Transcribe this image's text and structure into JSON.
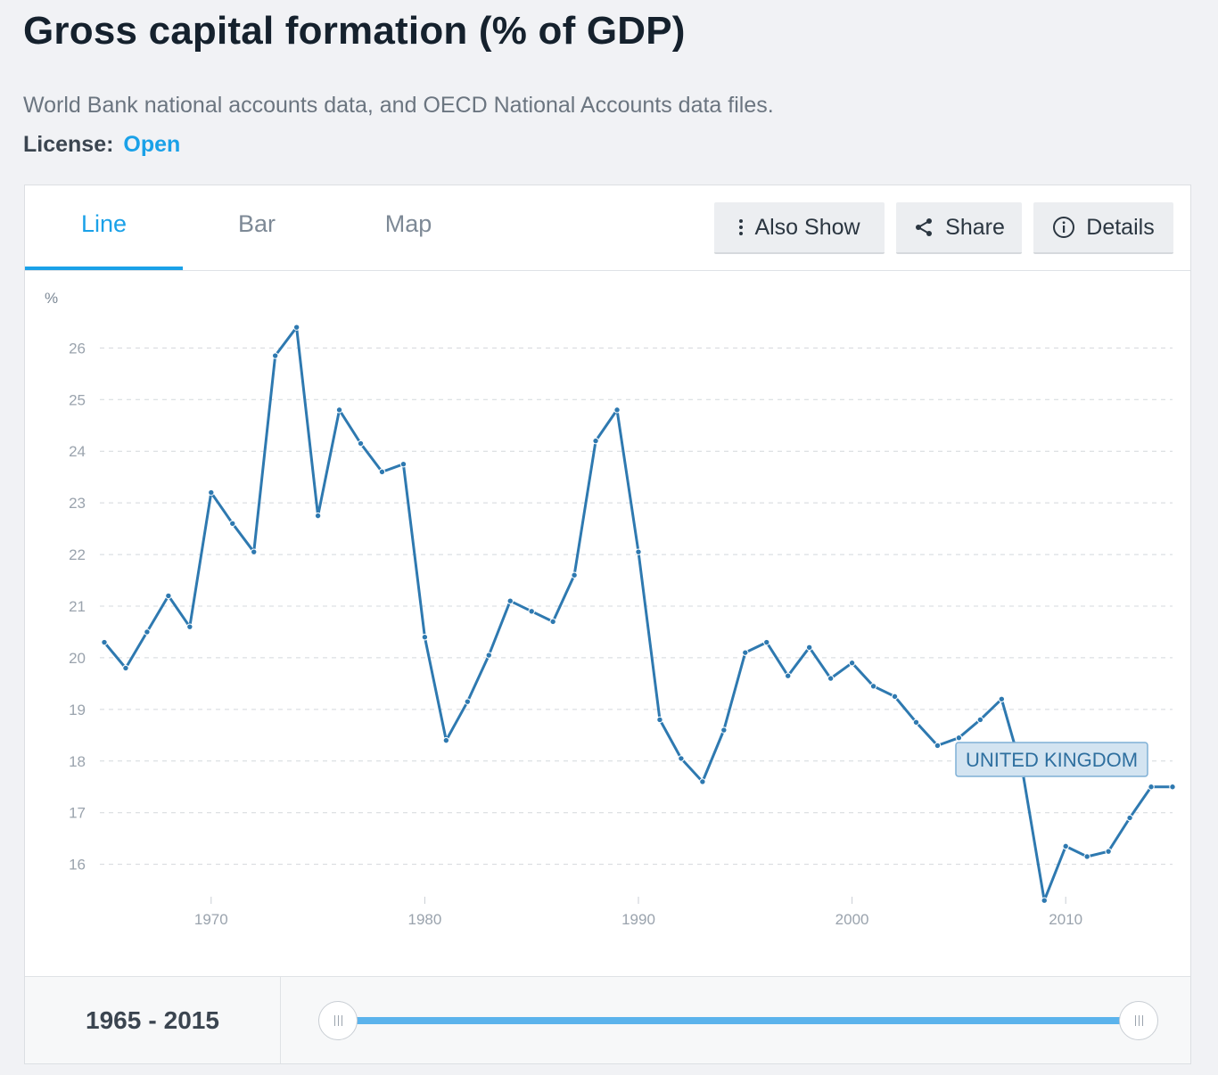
{
  "header": {
    "title": "Gross capital formation (% of GDP)",
    "source": "World Bank national accounts data, and OECD National Accounts data files.",
    "license_label": "License:",
    "license_value": "Open"
  },
  "tabs": [
    {
      "label": "Line",
      "active": true
    },
    {
      "label": "Bar",
      "active": false
    },
    {
      "label": "Map",
      "active": false
    }
  ],
  "toolbar": {
    "also_show": "Also Show",
    "share": "Share",
    "details": "Details"
  },
  "range": {
    "start": "1965",
    "separator": "-",
    "end": "2015"
  },
  "colors": {
    "accent": "#1aa1e8",
    "series": "#2e79b0",
    "slider": "#5bb3ec"
  },
  "chart_data": {
    "type": "line",
    "ylabel": "%",
    "x": [
      1965,
      1966,
      1967,
      1968,
      1969,
      1970,
      1971,
      1972,
      1973,
      1974,
      1975,
      1976,
      1977,
      1978,
      1979,
      1980,
      1981,
      1982,
      1983,
      1984,
      1985,
      1986,
      1987,
      1988,
      1989,
      1990,
      1991,
      1992,
      1993,
      1994,
      1995,
      1996,
      1997,
      1998,
      1999,
      2000,
      2001,
      2002,
      2003,
      2004,
      2005,
      2006,
      2007,
      2008,
      2009,
      2010,
      2011,
      2012,
      2013,
      2014,
      2015
    ],
    "series": [
      {
        "name": "UNITED KINGDOM",
        "values": [
          20.3,
          19.8,
          20.5,
          21.2,
          20.6,
          23.2,
          22.6,
          22.05,
          25.85,
          26.4,
          22.75,
          24.8,
          24.15,
          23.6,
          23.75,
          20.4,
          18.4,
          19.15,
          20.05,
          21.1,
          20.9,
          20.7,
          21.6,
          24.2,
          24.8,
          22.05,
          18.8,
          18.05,
          17.6,
          18.6,
          20.1,
          20.3,
          19.65,
          20.2,
          19.6,
          19.9,
          19.45,
          19.25,
          18.75,
          18.3,
          18.45,
          18.8,
          19.2,
          17.75,
          15.3,
          16.35,
          16.15,
          16.25,
          16.9,
          17.5,
          17.5
        ]
      }
    ],
    "xticks": [
      1970,
      1980,
      1990,
      2000,
      2010
    ],
    "yticks": [
      16,
      17,
      18,
      19,
      20,
      21,
      22,
      23,
      24,
      25,
      26
    ],
    "xlim": [
      1965,
      2015
    ],
    "ylim": [
      15.2,
      26.8
    ],
    "grid": true,
    "grid_style": "dashed horizontal",
    "series_label": "UNITED KINGDOM",
    "legend": "inline label near series end"
  }
}
